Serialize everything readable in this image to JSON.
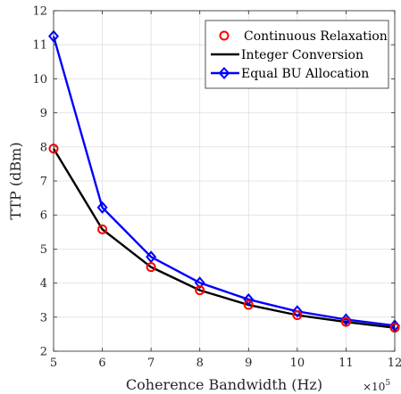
{
  "chart_data": {
    "type": "line",
    "xlabel": "Coherence Bandwidth (Hz)",
    "ylabel": "TTP (dBm)",
    "x_exponent_label": "×10",
    "x_exponent": "5",
    "xlim": [
      5,
      12
    ],
    "ylim": [
      2,
      12
    ],
    "xticks": [
      5,
      6,
      7,
      8,
      9,
      10,
      11,
      12
    ],
    "yticks": [
      2,
      3,
      4,
      5,
      6,
      7,
      8,
      9,
      10,
      11,
      12
    ],
    "grid": true,
    "legend_position": "top-right",
    "x": [
      5,
      6,
      7,
      8,
      9,
      10,
      11,
      12
    ],
    "series": [
      {
        "name": "Continuous Relaxation",
        "style": "markers",
        "marker": "circle",
        "color": "#ff0000",
        "values": [
          7.95,
          5.58,
          4.47,
          3.79,
          3.36,
          3.06,
          2.86,
          2.69
        ]
      },
      {
        "name": "Integer Conversion",
        "style": "line",
        "color": "#000000",
        "values": [
          7.95,
          5.58,
          4.47,
          3.79,
          3.36,
          3.06,
          2.86,
          2.69
        ]
      },
      {
        "name": "Equal BU Allocation",
        "style": "line+markers",
        "marker": "diamond",
        "color": "#0000ff",
        "values": [
          11.25,
          6.22,
          4.77,
          4.01,
          3.52,
          3.17,
          2.93,
          2.75
        ]
      }
    ]
  }
}
